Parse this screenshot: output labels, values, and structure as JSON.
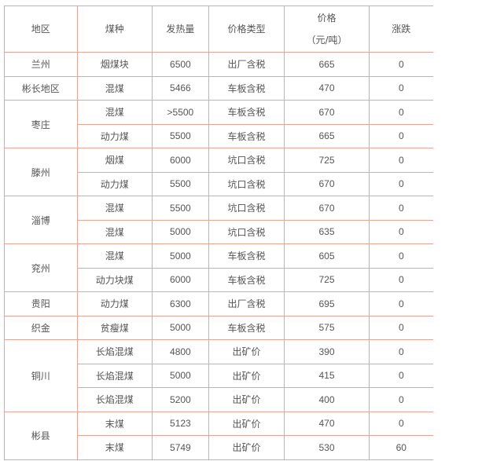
{
  "table": {
    "headers": [
      "地区",
      "煤种",
      "发热量",
      "价格类型",
      "价格",
      "（元/吨）",
      "涨跌"
    ],
    "groups": [
      {
        "region": "兰州",
        "rows": [
          [
            "烟煤块",
            "6500",
            "出厂含税",
            "665",
            "0"
          ]
        ]
      },
      {
        "region": "彬长地区",
        "rows": [
          [
            "混煤",
            "5466",
            "车板含税",
            "470",
            "0"
          ]
        ]
      },
      {
        "region": "枣庄",
        "rows": [
          [
            "混煤",
            ">5500",
            "车板含税",
            "670",
            "0"
          ],
          [
            "动力煤",
            "5500",
            "车板含税",
            "665",
            "0"
          ]
        ]
      },
      {
        "region": "滕州",
        "rows": [
          [
            "烟煤",
            "6000",
            "坑口含税",
            "725",
            "0"
          ],
          [
            "动力煤",
            "5500",
            "坑口含税",
            "670",
            "0"
          ]
        ]
      },
      {
        "region": "淄博",
        "rows": [
          [
            "混煤",
            "5500",
            "坑口含税",
            "670",
            "0"
          ],
          [
            "混煤",
            "5000",
            "坑口含税",
            "635",
            "0"
          ]
        ]
      },
      {
        "region": "兖州",
        "rows": [
          [
            "混煤",
            "5000",
            "车板含税",
            "605",
            "0"
          ],
          [
            "动力块煤",
            "6000",
            "车板含税",
            "725",
            "0"
          ]
        ]
      },
      {
        "region": "贵阳",
        "rows": [
          [
            "动力煤",
            "6300",
            "出厂含税",
            "695",
            "0"
          ]
        ]
      },
      {
        "region": "织金",
        "rows": [
          [
            "贫瘦煤",
            "5000",
            "车板含税",
            "575",
            "0"
          ]
        ]
      },
      {
        "region": "铜川",
        "rows": [
          [
            "长焰混煤",
            "4800",
            "出矿价",
            "390",
            "0"
          ],
          [
            "长焰混煤",
            "5000",
            "出矿价",
            "415",
            "0"
          ],
          [
            "长焰混煤",
            "5200",
            "出矿价",
            "400",
            "0"
          ]
        ]
      },
      {
        "region": "彬县",
        "rows": [
          [
            "末煤",
            "5123",
            "出矿价",
            "470",
            "0"
          ],
          [
            "末煤",
            "5749",
            "出矿价",
            "530",
            "60"
          ]
        ]
      }
    ]
  },
  "colors": {
    "border": "#e9a494",
    "text": "#555555"
  }
}
